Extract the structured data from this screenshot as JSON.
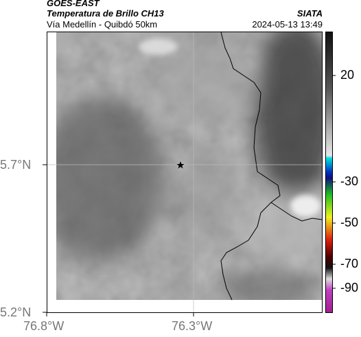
{
  "header": {
    "source": "GOES-EAST",
    "title": "Temperatura de Brillo CH13",
    "subtitle": "Vía Medellín - Quibdó 50km",
    "agency": "SIATA",
    "timestamp": "2024-05-13 13:49"
  },
  "map": {
    "lat_labels": [
      "5.7°N",
      "5.2°N"
    ],
    "lon_labels": [
      "76.8°W",
      "76.3°W"
    ]
  },
  "colorbar": {
    "labels": [
      "20",
      "-30",
      "-50",
      "-70",
      "-90"
    ]
  }
}
